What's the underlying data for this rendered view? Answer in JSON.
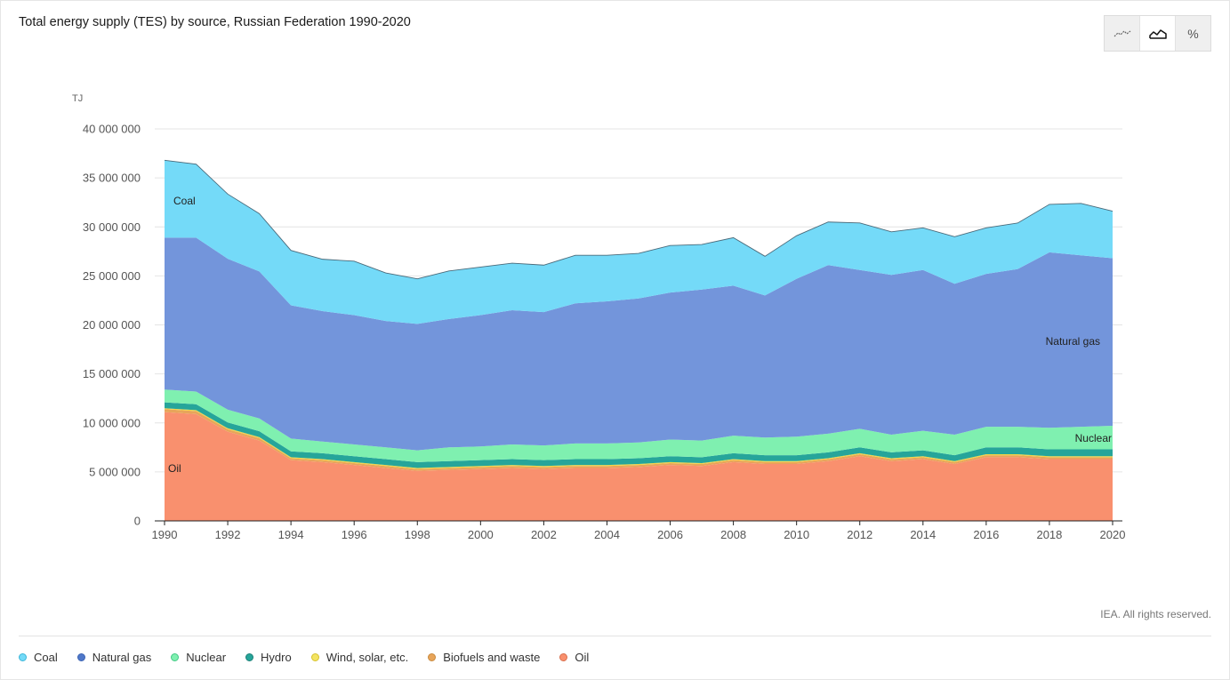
{
  "title": "Total energy supply (TES) by source, Russian Federation 1990-2020",
  "toggle": {
    "buttons": [
      {
        "name": "line-chart-button",
        "icon": "line-chart-icon",
        "active": false
      },
      {
        "name": "area-chart-button",
        "icon": "area-chart-icon",
        "active": true
      },
      {
        "name": "percent-button",
        "icon": "percent-icon",
        "label": "%",
        "active": false
      }
    ]
  },
  "copyright": "IEA. All rights reserved.",
  "chart_data": {
    "type": "area",
    "stacked": true,
    "title": "Total energy supply (TES) by source, Russian Federation 1990-2020",
    "ylabel": "TJ",
    "xlabel": "",
    "ylim": [
      0,
      40000000
    ],
    "yticks": [
      0,
      5000000,
      10000000,
      15000000,
      20000000,
      25000000,
      30000000,
      35000000,
      40000000
    ],
    "ytick_labels": [
      "0",
      "5 000 000",
      "10 000 000",
      "15 000 000",
      "20 000 000",
      "25 000 000",
      "30 000 000",
      "35 000 000",
      "40 000 000"
    ],
    "xticks": [
      1990,
      1992,
      1994,
      1996,
      1998,
      2000,
      2002,
      2004,
      2006,
      2008,
      2010,
      2012,
      2014,
      2016,
      2018,
      2020
    ],
    "grid": true,
    "legend_position": "bottom",
    "x": [
      1990,
      1991,
      1992,
      1993,
      1994,
      1995,
      1996,
      1997,
      1998,
      1999,
      2000,
      2001,
      2002,
      2003,
      2004,
      2005,
      2006,
      2007,
      2008,
      2009,
      2010,
      2011,
      2012,
      2013,
      2014,
      2015,
      2016,
      2017,
      2018,
      2019,
      2020
    ],
    "series": [
      {
        "name": "Oil",
        "label": "Oil",
        "color": "#f9906e",
        "values": [
          11100000,
          10900000,
          9100000,
          8200000,
          6200000,
          6000000,
          5700000,
          5400000,
          5100000,
          5200000,
          5300000,
          5400000,
          5300000,
          5400000,
          5400000,
          5500000,
          5700000,
          5600000,
          6000000,
          5800000,
          5800000,
          6100000,
          6600000,
          6100000,
          6300000,
          5800000,
          6500000,
          6500000,
          6300000,
          6300000,
          6300000
        ]
      },
      {
        "name": "Biofuels and waste",
        "label": "Biofuels and waste",
        "color": "#e8a55a",
        "values": [
          300000,
          300000,
          250000,
          250000,
          200000,
          200000,
          200000,
          200000,
          200000,
          200000,
          200000,
          200000,
          200000,
          200000,
          200000,
          200000,
          200000,
          200000,
          200000,
          200000,
          200000,
          200000,
          200000,
          200000,
          200000,
          200000,
          200000,
          200000,
          200000,
          200000,
          200000
        ]
      },
      {
        "name": "Wind, solar, etc.",
        "label": "Wind, solar, etc.",
        "color": "#f4d542",
        "values": [
          100000,
          100000,
          100000,
          100000,
          100000,
          100000,
          100000,
          100000,
          100000,
          100000,
          100000,
          100000,
          100000,
          100000,
          100000,
          100000,
          100000,
          100000,
          100000,
          100000,
          100000,
          100000,
          100000,
          100000,
          100000,
          100000,
          100000,
          100000,
          100000,
          100000,
          100000
        ]
      },
      {
        "name": "Hydro",
        "label": "Hydro",
        "color": "#26a59a",
        "values": [
          600000,
          600000,
          600000,
          600000,
          600000,
          600000,
          600000,
          600000,
          600000,
          600000,
          600000,
          600000,
          600000,
          600000,
          600000,
          600000,
          600000,
          600000,
          600000,
          600000,
          600000,
          600000,
          600000,
          600000,
          600000,
          600000,
          700000,
          700000,
          700000,
          700000,
          700000
        ]
      },
      {
        "name": "Nuclear",
        "label": "Nuclear",
        "color": "#7ff0b0",
        "values": [
          1300000,
          1300000,
          1300000,
          1300000,
          1300000,
          1200000,
          1200000,
          1200000,
          1200000,
          1400000,
          1400000,
          1500000,
          1500000,
          1600000,
          1600000,
          1600000,
          1700000,
          1700000,
          1800000,
          1800000,
          1900000,
          1900000,
          1900000,
          1800000,
          2000000,
          2100000,
          2100000,
          2100000,
          2200000,
          2300000,
          2400000
        ]
      },
      {
        "name": "Natural gas",
        "label": "Natural gas",
        "color": "#7395db",
        "values": [
          15500000,
          15700000,
          15400000,
          15000000,
          13600000,
          13300000,
          13200000,
          12900000,
          12900000,
          13100000,
          13400000,
          13700000,
          13600000,
          14300000,
          14500000,
          14700000,
          15000000,
          15400000,
          15300000,
          14500000,
          16100000,
          17200000,
          16200000,
          16300000,
          16400000,
          15400000,
          15600000,
          16100000,
          17900000,
          17500000,
          17100000
        ]
      },
      {
        "name": "Coal",
        "label": "Coal",
        "color": "#74daf8",
        "values": [
          7900000,
          7500000,
          6600000,
          5900000,
          5600000,
          5300000,
          5500000,
          4900000,
          4600000,
          4900000,
          4900000,
          4800000,
          4800000,
          4900000,
          4700000,
          4600000,
          4800000,
          4600000,
          4900000,
          4000000,
          4400000,
          4400000,
          4800000,
          4400000,
          4300000,
          4800000,
          4700000,
          4700000,
          4900000,
          5300000,
          4800000
        ]
      }
    ]
  },
  "legend": [
    {
      "label": "Coal",
      "color": "#74daf8",
      "border": "#3cb6d9"
    },
    {
      "label": "Natural gas",
      "color": "#4f78c9",
      "border": "#3b63b3"
    },
    {
      "label": "Nuclear",
      "color": "#7ff0b0",
      "border": "#43c985"
    },
    {
      "label": "Hydro",
      "color": "#26a59a",
      "border": "#1b8077"
    },
    {
      "label": "Wind, solar, etc.",
      "color": "#f4e462",
      "border": "#d6c22d"
    },
    {
      "label": "Biofuels and waste",
      "color": "#e8a55a",
      "border": "#c98a3e"
    },
    {
      "label": "Oil",
      "color": "#f9906e",
      "border": "#d9704f"
    }
  ]
}
